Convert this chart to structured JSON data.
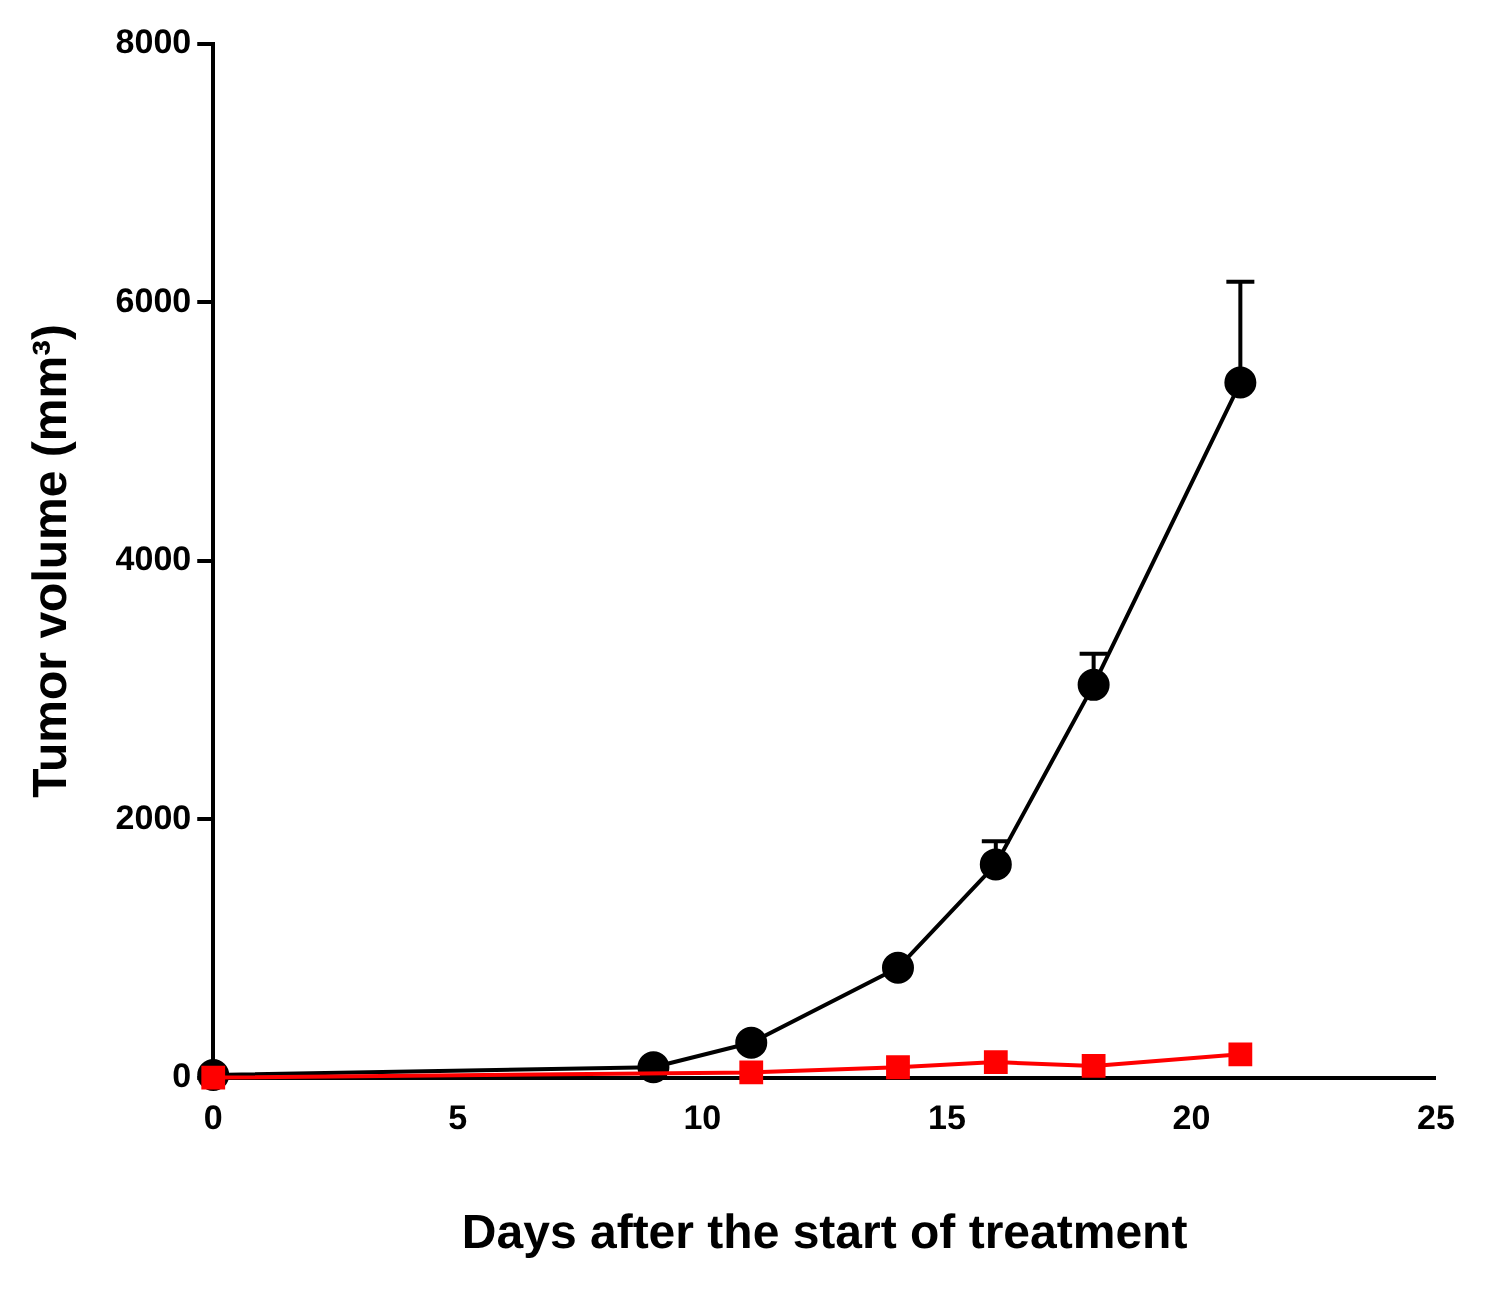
{
  "chart_data": {
    "type": "line",
    "xlabel": "Days after the start of treatment",
    "ylabel": "Tumor volume (mm³)",
    "xlim": [
      0,
      25
    ],
    "xticks": [
      0,
      5,
      10,
      15,
      20,
      25
    ],
    "ylim": [
      0,
      8000
    ],
    "yticks": [
      0,
      2000,
      4000,
      6000,
      8000
    ],
    "grid": false,
    "legend": false,
    "line_style": "solid",
    "series": [
      {
        "color": "#000000",
        "marker": "circle",
        "x": [
          0,
          9,
          11,
          14,
          16,
          18,
          21
        ],
        "values": [
          20,
          80,
          270,
          850,
          1650,
          3040,
          5380
        ],
        "errors": [
          null,
          null,
          null,
          null,
          [
            1650,
            1830
          ],
          [
            3040,
            3280
          ],
          [
            5380,
            6160
          ]
        ]
      },
      {
        "color": "#ff0000",
        "marker": "square",
        "x": [
          0,
          9,
          11,
          14,
          16,
          18,
          21
        ],
        "values": [
          0,
          null,
          40,
          80,
          120,
          90,
          180
        ]
      }
    ]
  }
}
